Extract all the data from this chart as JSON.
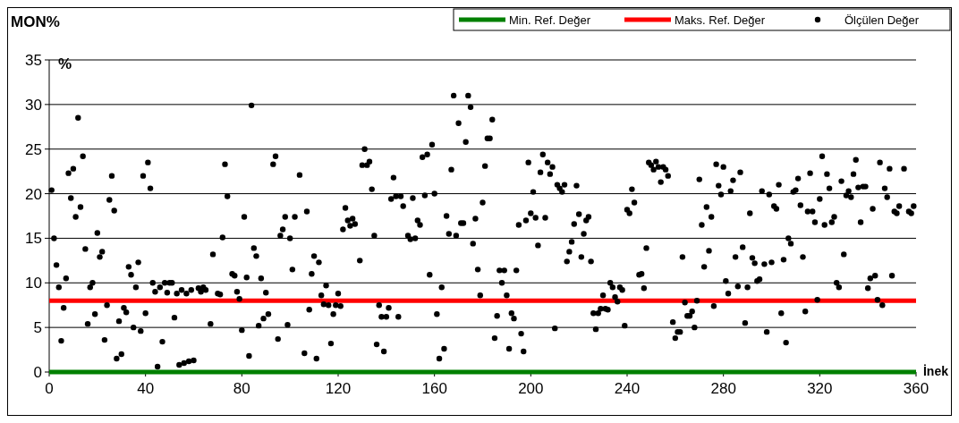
{
  "chart_data": {
    "type": "scatter",
    "title": "MON%",
    "ylabel": "%",
    "xlabel": "İnek",
    "xlim": [
      0,
      360
    ],
    "xticks": [
      0,
      40,
      80,
      120,
      160,
      200,
      240,
      280,
      320,
      360
    ],
    "ylim": [
      0,
      35
    ],
    "yticks": [
      0,
      5,
      10,
      15,
      20,
      25,
      30,
      35
    ],
    "grid": "y",
    "legend": "top right",
    "series": [
      {
        "name": "Min. Ref. Değer",
        "type": "line",
        "color": "#008000",
        "marker": "none",
        "x": [
          0,
          360
        ],
        "values": [
          0,
          0
        ]
      },
      {
        "name": "Maks. Ref. Değer",
        "type": "line",
        "color": "#ff0000",
        "marker": "none",
        "x": [
          0,
          360
        ],
        "values": [
          8,
          8
        ]
      },
      {
        "name": "Ölçülen Değer",
        "color": "#000000",
        "marker": "circle",
        "x": [
          1,
          2,
          3,
          4,
          5,
          6,
          7,
          8,
          9,
          10,
          11,
          12,
          13,
          14,
          15,
          16,
          17,
          18,
          19,
          20,
          21,
          22,
          23,
          24,
          25,
          26,
          27,
          28,
          29,
          30,
          31,
          32,
          33,
          34,
          35,
          36,
          37,
          38,
          39,
          40,
          41,
          42,
          43,
          44,
          45,
          46,
          47,
          48,
          49,
          50,
          51,
          52,
          53,
          54,
          55,
          56,
          57,
          58,
          59,
          60,
          62,
          63,
          64,
          65,
          67,
          68,
          70,
          71,
          72,
          73,
          74,
          76,
          77,
          78,
          79,
          80,
          81,
          82,
          83,
          84,
          85,
          86,
          87,
          88,
          89,
          90,
          91,
          93,
          94,
          95,
          96,
          97,
          98,
          99,
          100,
          101,
          102,
          104,
          106,
          107,
          108,
          109,
          110,
          111,
          112,
          113,
          114,
          115,
          116,
          117,
          118,
          119,
          120,
          121,
          122,
          123,
          124,
          125,
          126,
          127,
          129,
          130,
          131,
          132,
          133,
          134,
          135,
          136,
          137,
          138,
          139,
          140,
          141,
          142,
          143,
          144,
          145,
          146,
          147,
          149,
          150,
          151,
          152,
          153,
          154,
          155,
          156,
          157,
          158,
          159,
          160,
          161,
          162,
          163,
          164,
          165,
          166,
          167,
          168,
          169,
          170,
          171,
          172,
          173,
          174,
          175,
          176,
          177,
          178,
          179,
          180,
          181,
          182,
          183,
          184,
          185,
          186,
          187,
          188,
          189,
          190,
          191,
          192,
          193,
          194,
          195,
          196,
          197,
          198,
          199,
          200,
          201,
          202,
          203,
          204,
          205,
          206,
          207,
          208,
          209,
          210,
          211,
          212,
          213,
          214,
          215,
          216,
          217,
          218,
          219,
          220,
          221,
          222,
          223,
          224,
          225,
          226,
          227,
          228,
          229,
          230,
          231,
          232,
          233,
          234,
          235,
          236,
          237,
          238,
          239,
          240,
          241,
          242,
          243,
          245,
          246,
          247,
          248,
          249,
          250,
          251,
          252,
          253,
          254,
          255,
          256,
          257,
          259,
          260,
          261,
          262,
          263,
          264,
          265,
          266,
          267,
          268,
          269,
          270,
          271,
          272,
          273,
          274,
          275,
          276,
          277,
          278,
          279,
          280,
          281,
          282,
          283,
          284,
          285,
          286,
          287,
          288,
          289,
          290,
          291,
          292,
          293,
          294,
          295,
          296,
          297,
          298,
          299,
          300,
          301,
          302,
          303,
          304,
          305,
          306,
          307,
          308,
          309,
          310,
          311,
          312,
          313,
          314,
          315,
          316,
          317,
          318,
          319,
          320,
          321,
          322,
          323,
          324,
          325,
          326,
          327,
          328,
          329,
          330,
          331,
          332,
          333,
          334,
          335,
          336,
          337,
          338,
          339,
          340,
          341,
          342,
          343,
          344,
          345,
          346,
          347,
          348,
          349,
          350,
          351,
          352,
          353,
          355,
          357,
          358,
          359
        ],
        "values": [
          20.4,
          15,
          12,
          9.5,
          3.5,
          7.2,
          10.5,
          22.3,
          19.5,
          22.8,
          17.4,
          28.5,
          18.5,
          24.2,
          13.8,
          5.4,
          9.5,
          10,
          6.5,
          15.6,
          12.9,
          13.5,
          3.6,
          7.5,
          19.3,
          22,
          18.1,
          1.5,
          5.7,
          2,
          7.2,
          6.7,
          11.8,
          10.9,
          5,
          9.5,
          12.3,
          4.6,
          22,
          6.6,
          23.5,
          20.6,
          10,
          9,
          0.6,
          9.5,
          3.4,
          10,
          8.9,
          10,
          10,
          6.1,
          8.8,
          0.8,
          9.2,
          1,
          8.8,
          1.2,
          9.2,
          1.3,
          9.4,
          9,
          9.5,
          9.2,
          5.4,
          13.2,
          8.8,
          8.7,
          15.1,
          23.3,
          19.7,
          11,
          10.8,
          9,
          8.2,
          4.7,
          17.4,
          10.6,
          1.8,
          29.9,
          13.9,
          13,
          5.2,
          10.5,
          6,
          8.9,
          6.5,
          23.3,
          24.2,
          3.7,
          15.3,
          16,
          17.4,
          5.3,
          15,
          11.5,
          17.4,
          22.1,
          2.1,
          18,
          7,
          11,
          13,
          1.5,
          12.3,
          8.6,
          7.6,
          9.7,
          7.5,
          3.2,
          6.5,
          7.5,
          8.8,
          7.4,
          16,
          18.4,
          17,
          16.4,
          17.2,
          16.6,
          12.5,
          23.2,
          25,
          23.2,
          23.6,
          20.5,
          15.3,
          3.1,
          7.5,
          6.2,
          2.3,
          6.2,
          7.2,
          19.4,
          21.8,
          19.7,
          6.2,
          19.7,
          18.6,
          15.3,
          14.9,
          19.5,
          15,
          17,
          16.5,
          24.1,
          19.8,
          24.4,
          10.9,
          25.5,
          20,
          6.5,
          1.5,
          9.5,
          2.6,
          17.5,
          15.5,
          22.7,
          31,
          15.3,
          27.9,
          16.7,
          16.7,
          25.8,
          31,
          29.7,
          14.4,
          17.2,
          11.5,
          8.6,
          19,
          23.1,
          26.2,
          26.2,
          28.3,
          3.8,
          6.3,
          11.4,
          10,
          11.4,
          8.6,
          2.6,
          6.6,
          6,
          11.4,
          16.5,
          4.3,
          2.3,
          17,
          23.5,
          17.8,
          20.2,
          17.3,
          14.2,
          22.4,
          24.4,
          17.3,
          23.5,
          22.2,
          23,
          4.9,
          21,
          20.6,
          20.2,
          21,
          12.4,
          13.5,
          14.6,
          16.6,
          20.9,
          17.7,
          12.9,
          15.5,
          17,
          17.4,
          12.4,
          6.6,
          4.8,
          6.6,
          7.1,
          8.6,
          7.1,
          7,
          10,
          9.5,
          8.4,
          7.9,
          9.5,
          9.2,
          5.2,
          18.2,
          17.8,
          20.5,
          19,
          10.9,
          11,
          9.4,
          13.9,
          23.5,
          23.2,
          22.7,
          23.6,
          23,
          21.3,
          23,
          22.7,
          22,
          5.6,
          3.8,
          4.5,
          4.5,
          12.9,
          7.8,
          6.3,
          6.3,
          6.8,
          5,
          8,
          21.6,
          16.5,
          11.8,
          18.5,
          13.6,
          17.4,
          7.4,
          23.3,
          20.9,
          19.9,
          23,
          10.2,
          8.8,
          20.3,
          21.5,
          12.9,
          9.6,
          22.4,
          14,
          5.5,
          9.5,
          17.8,
          12.8,
          12.2,
          10.2,
          10.4,
          20.3,
          12.1,
          4.5,
          19.9,
          12.3,
          18.6,
          18.3,
          21,
          6.6,
          12.6,
          3.3,
          15,
          14.4,
          20.2,
          20.4,
          21.7,
          18.7,
          12.9,
          6.8,
          18,
          22.3,
          18,
          16.8,
          8.1,
          19.4,
          24.2,
          16.5,
          22.2,
          20.6,
          16.8,
          17.4,
          10,
          9.5,
          21.4,
          13.2,
          19.8,
          20.3,
          19.6,
          22.2,
          23.8,
          20.7,
          16.8,
          20.8,
          20.8,
          9.4,
          10.5,
          18.3,
          10.8,
          8.1,
          23.5,
          7.5,
          20.6,
          19.6,
          22.8,
          10.8,
          18,
          17.8,
          18.6,
          22.8,
          18,
          17.8,
          18.6
        ]
      }
    ]
  }
}
